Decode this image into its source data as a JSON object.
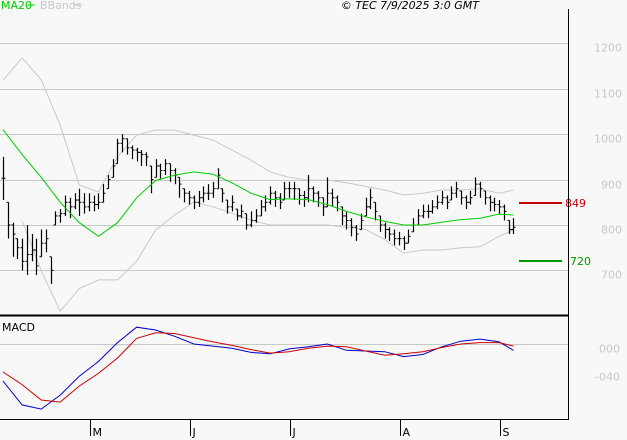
{
  "header": {
    "legend": [
      {
        "name": "MA20",
        "color": "#00cc00"
      },
      {
        "name": "BBands",
        "color": "#c8c8c8"
      }
    ],
    "copyright": "© TEC 7/9/2025 3:0 GMT"
  },
  "chart_data": [
    {
      "type": "ohlc",
      "panel": "price",
      "yticks": [
        700,
        800,
        900,
        1000,
        1100,
        1200
      ],
      "ytick_labels": [
        "700",
        "800",
        "900",
        "1000",
        "1100",
        "1200"
      ],
      "ylim": [
        590,
        1290
      ],
      "grid": true,
      "bar_color": "#000000",
      "bars_hlc": [
        [
          950,
          855,
          903
        ],
        [
          850,
          770,
          800
        ],
        [
          805,
          730,
          780
        ],
        [
          770,
          725,
          750
        ],
        [
          770,
          700,
          720
        ],
        [
          800,
          690,
          735
        ],
        [
          780,
          720,
          745
        ],
        [
          770,
          690,
          710
        ],
        [
          790,
          730,
          760
        ],
        [
          790,
          740,
          770
        ],
        [
          730,
          670,
          700
        ],
        [
          830,
          800,
          820
        ],
        [
          835,
          805,
          825
        ],
        [
          865,
          820,
          850
        ],
        [
          860,
          815,
          840
        ],
        [
          870,
          835,
          855
        ],
        [
          880,
          820,
          850
        ],
        [
          870,
          825,
          840
        ],
        [
          870,
          830,
          850
        ],
        [
          865,
          830,
          845
        ],
        [
          870,
          835,
          850
        ],
        [
          890,
          850,
          870
        ],
        [
          910,
          880,
          900
        ],
        [
          945,
          905,
          930
        ],
        [
          990,
          935,
          980
        ],
        [
          1000,
          960,
          990
        ],
        [
          990,
          955,
          970
        ],
        [
          975,
          945,
          965
        ],
        [
          970,
          940,
          960
        ],
        [
          965,
          930,
          955
        ],
        [
          960,
          930,
          950
        ],
        [
          930,
          870,
          900
        ],
        [
          945,
          905,
          930
        ],
        [
          935,
          900,
          920
        ],
        [
          945,
          910,
          935
        ],
        [
          935,
          895,
          920
        ],
        [
          925,
          890,
          910
        ],
        [
          905,
          860,
          890
        ],
        [
          880,
          850,
          870
        ],
        [
          875,
          845,
          860
        ],
        [
          865,
          835,
          850
        ],
        [
          875,
          840,
          860
        ],
        [
          885,
          850,
          870
        ],
        [
          890,
          855,
          870
        ],
        [
          895,
          860,
          880
        ],
        [
          925,
          880,
          910
        ],
        [
          880,
          850,
          870
        ],
        [
          855,
          825,
          840
        ],
        [
          865,
          830,
          850
        ],
        [
          835,
          810,
          820
        ],
        [
          845,
          815,
          830
        ],
        [
          825,
          790,
          800
        ],
        [
          830,
          795,
          810
        ],
        [
          835,
          805,
          820
        ],
        [
          855,
          820,
          840
        ],
        [
          865,
          830,
          850
        ],
        [
          885,
          845,
          870
        ],
        [
          875,
          840,
          860
        ],
        [
          870,
          835,
          850
        ],
        [
          895,
          855,
          880
        ],
        [
          895,
          860,
          880
        ],
        [
          895,
          855,
          880
        ],
        [
          880,
          845,
          865
        ],
        [
          875,
          840,
          860
        ],
        [
          910,
          850,
          880
        ],
        [
          885,
          850,
          870
        ],
        [
          875,
          840,
          860
        ],
        [
          860,
          820,
          840
        ],
        [
          905,
          840,
          870
        ],
        [
          880,
          840,
          860
        ],
        [
          865,
          830,
          850
        ],
        [
          840,
          800,
          820
        ],
        [
          830,
          790,
          810
        ],
        [
          815,
          775,
          795
        ],
        [
          800,
          765,
          780
        ],
        [
          825,
          790,
          810
        ],
        [
          860,
          820,
          840
        ],
        [
          880,
          835,
          860
        ],
        [
          850,
          810,
          830
        ],
        [
          820,
          785,
          800
        ],
        [
          805,
          770,
          790
        ],
        [
          795,
          765,
          780
        ],
        [
          790,
          755,
          770
        ],
        [
          785,
          755,
          770
        ],
        [
          775,
          745,
          760
        ],
        [
          790,
          760,
          775
        ],
        [
          815,
          785,
          800
        ],
        [
          835,
          800,
          820
        ],
        [
          845,
          815,
          830
        ],
        [
          845,
          815,
          830
        ],
        [
          855,
          825,
          840
        ],
        [
          865,
          835,
          850
        ],
        [
          875,
          845,
          860
        ],
        [
          865,
          835,
          850
        ],
        [
          885,
          855,
          870
        ],
        [
          895,
          860,
          880
        ],
        [
          875,
          845,
          860
        ],
        [
          865,
          835,
          850
        ],
        [
          875,
          845,
          860
        ],
        [
          905,
          865,
          890
        ],
        [
          895,
          860,
          880
        ],
        [
          875,
          845,
          860
        ],
        [
          865,
          830,
          850
        ],
        [
          860,
          830,
          845
        ],
        [
          855,
          825,
          840
        ],
        [
          845,
          810,
          830
        ],
        [
          810,
          780,
          790
        ],
        [
          815,
          780,
          795
        ]
      ],
      "overlay_sample_bars": [
        0,
        4,
        8,
        12,
        16,
        20,
        24,
        28,
        32,
        36,
        40,
        44,
        48,
        52,
        56,
        60,
        64,
        68,
        72,
        76,
        80,
        84,
        88,
        92,
        96,
        100,
        104,
        107
      ],
      "ma20": [
        1010,
        955,
        905,
        850,
        805,
        775,
        805,
        860,
        898,
        910,
        917,
        912,
        893,
        870,
        856,
        858,
        856,
        845,
        830,
        818,
        808,
        800,
        800,
        806,
        812,
        815,
        824,
        822
      ],
      "bb_upper": [
        1119,
        1168,
        1120,
        1020,
        888,
        873,
        950,
        998,
        1009,
        1009,
        998,
        987,
        965,
        943,
        917,
        905,
        899,
        899,
        893,
        885,
        877,
        866,
        870,
        877,
        877,
        880,
        870,
        877
      ],
      "bb_lower": [
        null,
        810,
        700,
        610,
        660,
        679,
        679,
        720,
        789,
        822,
        851,
        840,
        826,
        811,
        800,
        800,
        800,
        800,
        795,
        790,
        768,
        738,
        745,
        745,
        750,
        752,
        775,
        789
      ],
      "levels": [
        {
          "label": "849",
          "value": 849,
          "color": "#cc0000"
        },
        {
          "label": "720",
          "value": 720,
          "color": "#009900"
        }
      ]
    },
    {
      "type": "line",
      "panel": "macd",
      "title": "MACD",
      "yticks": [
        0,
        -40
      ],
      "ytick_labels": [
        "000",
        "-040"
      ],
      "ylim": [
        -107,
        40
      ],
      "sample_bars": [
        0,
        4,
        8,
        12,
        16,
        20,
        24,
        28,
        32,
        36,
        40,
        44,
        48,
        52,
        56,
        60,
        64,
        68,
        72,
        76,
        80,
        84,
        88,
        92,
        96,
        100,
        104,
        107
      ],
      "series": [
        {
          "color": "#0000cc",
          "values": [
            -53,
            -87,
            -93,
            -73,
            -46,
            -25,
            2,
            24,
            20,
            11,
            0,
            -3,
            -6,
            -12,
            -14,
            -7,
            -4,
            0,
            -9,
            -10,
            -11,
            -18,
            -15,
            -4,
            4,
            7,
            3,
            -9
          ]
        },
        {
          "color": "#cc0000",
          "values": [
            -40,
            -58,
            -80,
            -83,
            -60,
            -42,
            -20,
            8,
            16,
            15,
            9,
            3,
            -2,
            -8,
            -13,
            -11,
            -6,
            -3,
            -4,
            -10,
            -16,
            -14,
            -11,
            -5,
            0,
            2,
            2,
            -3
          ]
        }
      ]
    }
  ],
  "xaxis": {
    "ticks": [
      {
        "label": "M",
        "at_bar": 18.2
      },
      {
        "label": "J",
        "at_bar": 39.2
      },
      {
        "label": "J",
        "at_bar": 60.2
      },
      {
        "label": "A",
        "at_bar": 83.2
      },
      {
        "label": "S",
        "at_bar": 104.2
      }
    ]
  }
}
